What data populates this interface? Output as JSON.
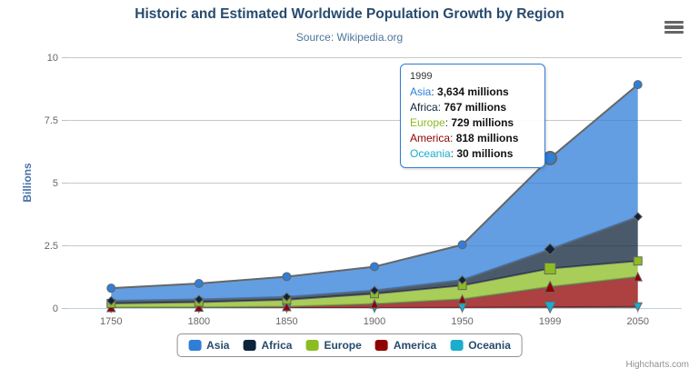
{
  "header": {
    "title": "Historic and Estimated Worldwide Population Growth by Region",
    "subtitle": "Source: Wikipedia.org"
  },
  "chart_data": {
    "type": "area",
    "stacked": true,
    "title": "Historic and Estimated Worldwide Population Growth by Region",
    "subtitle": "Source: Wikipedia.org",
    "categories": [
      "1750",
      "1800",
      "1850",
      "1900",
      "1950",
      "1999",
      "2050"
    ],
    "xlabel": "",
    "ylabel": "Billions",
    "ylim": [
      0,
      10
    ],
    "yticks": [
      0,
      2.5,
      5,
      7.5,
      10
    ],
    "ytick_labels": [
      "0",
      "2.5",
      "5",
      "7.5",
      "10"
    ],
    "grid": "horizontal-only",
    "legend_position": "bottom-center",
    "values_unit": "millions",
    "series": [
      {
        "name": "Asia",
        "color": "#2f7ed8",
        "symbol": "circle",
        "values": [
          502,
          635,
          809,
          947,
          1402,
          3634,
          5268
        ]
      },
      {
        "name": "Africa",
        "color": "#0d233a",
        "symbol": "diamond",
        "values": [
          106,
          107,
          111,
          133,
          221,
          767,
          1766
        ]
      },
      {
        "name": "Europe",
        "color": "#8bbc21",
        "symbol": "square",
        "values": [
          163,
          203,
          276,
          408,
          547,
          729,
          628
        ]
      },
      {
        "name": "America",
        "color": "#910000",
        "symbol": "triangle",
        "values": [
          18,
          31,
          54,
          156,
          339,
          818,
          1201
        ]
      },
      {
        "name": "Oceania",
        "color": "#1aadce",
        "symbol": "triangle-down",
        "values": [
          2,
          2,
          2,
          6,
          13,
          30,
          46
        ]
      }
    ],
    "stack_bottom_to_top": [
      "Oceania",
      "America",
      "Europe",
      "Africa",
      "Asia"
    ],
    "hover_category_index": 5,
    "line_color": "#666666",
    "fill_opacity": 0.75,
    "grid_color": "#C8C8C8",
    "axis_line_color": "#C0D0E0"
  },
  "tooltip": {
    "header": "1999",
    "border_color": "#2f7ed8",
    "rows": [
      {
        "label": "Asia",
        "value": "3,634 millions",
        "color": "#2f7ed8"
      },
      {
        "label": "Africa",
        "value": "767 millions",
        "color": "#0d233a"
      },
      {
        "label": "Europe",
        "value": "729 millions",
        "color": "#8bbc21"
      },
      {
        "label": "America",
        "value": "818 millions",
        "color": "#910000"
      },
      {
        "label": "Oceania",
        "value": "30 millions",
        "color": "#1aadce"
      }
    ]
  },
  "legend": {
    "border_color": "#909090",
    "items": [
      {
        "label": "Asia",
        "color": "#2f7ed8"
      },
      {
        "label": "Africa",
        "color": "#0d233a"
      },
      {
        "label": "Europe",
        "color": "#8bbc21"
      },
      {
        "label": "America",
        "color": "#910000"
      },
      {
        "label": "Oceania",
        "color": "#1aadce"
      }
    ]
  },
  "credits": {
    "label": "Highcharts.com"
  }
}
